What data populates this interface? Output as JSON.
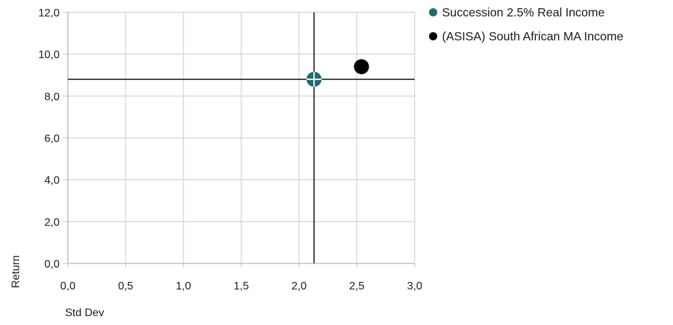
{
  "chart_data": {
    "type": "scatter",
    "xlabel": "Std Dev",
    "ylabel": "Return",
    "xlim": [
      0,
      3
    ],
    "ylim": [
      0,
      12
    ],
    "x_ticks": [
      "0,0",
      "0,5",
      "1,0",
      "1,5",
      "2,0",
      "2,5",
      "3,0"
    ],
    "y_ticks": [
      "0,0",
      "2,0",
      "4,0",
      "6,0",
      "8,0",
      "10,0",
      "12,0"
    ],
    "grid": true,
    "legend_position": "top-right",
    "series": [
      {
        "name": "Succession 2.5% Real Income",
        "color": "#1f6b6f",
        "marker": "crosshair-circle",
        "x": 2.13,
        "y": 8.8
      },
      {
        "name": "(ASISA) South African MA Income",
        "color": "#000000",
        "marker": "circle",
        "x": 2.54,
        "y": 9.4
      }
    ],
    "reference_lines": {
      "x": 2.13,
      "y": 8.8
    }
  }
}
